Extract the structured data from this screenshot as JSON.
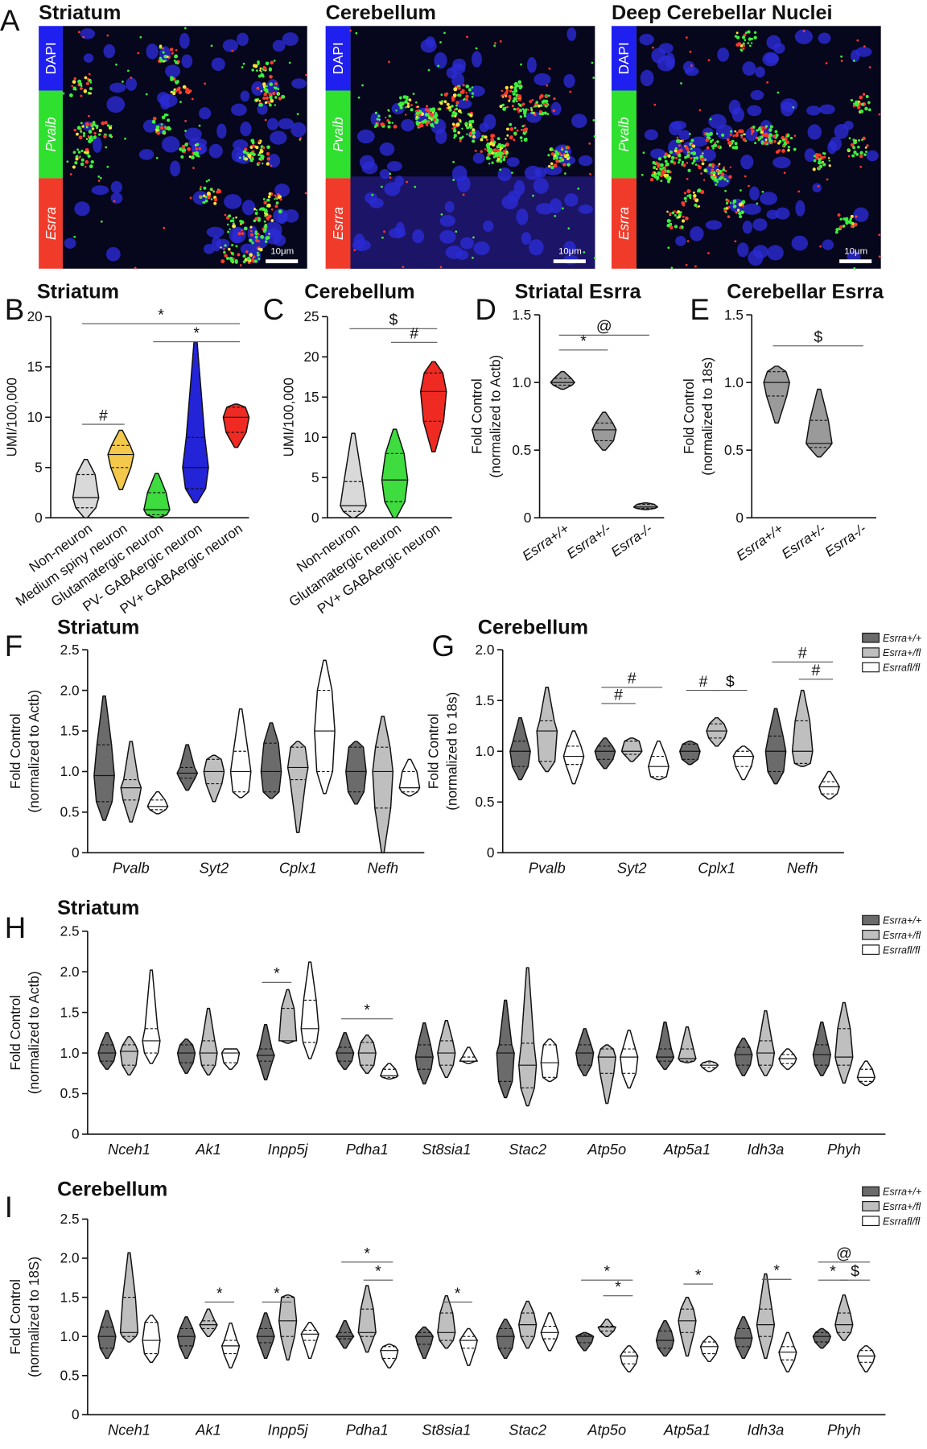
{
  "panel_a": {
    "label": "A",
    "images": [
      {
        "title": "Striatum",
        "channels": [
          "DAPI",
          "Pvalb",
          "Esrra"
        ],
        "scale_bar": "10μm"
      },
      {
        "title": "Cerebellum",
        "channels": [
          "DAPI",
          "Pvalb",
          "Esrra"
        ],
        "scale_bar": "10μm"
      },
      {
        "title": "Deep Cerebellar Nuclei",
        "channels": [
          "DAPI",
          "Pvalb",
          "Esrra"
        ],
        "scale_bar": "10μm"
      }
    ]
  },
  "chart_data": [
    {
      "type": "violin",
      "panel_label": "B",
      "title": "Striatum",
      "ylabel": [
        "UMI/100,000"
      ],
      "categories": [
        "Non-neuron",
        "Medium spiny neuron",
        "Glutamatergic neuron",
        "PV- GABAergic neuron",
        "PV+ GABAergic neuron"
      ],
      "values": [
        [
          0,
          1,
          2,
          4.3,
          5.8
        ],
        [
          2.8,
          5,
          6.3,
          7.2,
          8.7
        ],
        [
          0,
          0.3,
          0.8,
          2.5,
          4.4
        ],
        [
          1.5,
          2.9,
          5,
          8,
          17.5
        ],
        [
          7,
          8.5,
          10,
          11,
          11.3
        ]
      ],
      "colors": [
        "#d9d9d9",
        "#f4c84a",
        "#3fdc3f",
        "#2323d8",
        "#ee2a22"
      ],
      "ylim": [
        0,
        20
      ],
      "yticks": [
        0,
        5,
        10,
        15,
        20
      ],
      "annotations": [
        "*",
        "*",
        "#"
      ]
    },
    {
      "type": "violin",
      "panel_label": "C",
      "title": "Cerebellum",
      "ylabel": [
        "UMI/100,000"
      ],
      "categories": [
        "Non-neuron",
        "Glutamatergic neuron",
        "PV+ GABAergic neuron"
      ],
      "values": [
        [
          0,
          0.8,
          1.5,
          4.5,
          10.5
        ],
        [
          0,
          2,
          4.7,
          8,
          11
        ],
        [
          8.2,
          12,
          15.7,
          18,
          19.4
        ]
      ],
      "colors": [
        "#d9d9d9",
        "#3fdc3f",
        "#ee2a22"
      ],
      "ylim": [
        0,
        25
      ],
      "yticks": [
        0,
        5,
        10,
        15,
        20,
        25
      ],
      "annotations": [
        "$",
        "#"
      ]
    },
    {
      "type": "violin",
      "panel_label": "D",
      "title": "Striatal Esrra",
      "ylabel": [
        "Fold Control",
        "(normalized to Actb)"
      ],
      "categories": [
        "Esrra+/+",
        "Esrra+/-",
        "Esrra-/-"
      ],
      "values": [
        [
          0.95,
          0.98,
          1.0,
          1.03,
          1.08
        ],
        [
          0.5,
          0.57,
          0.65,
          0.7,
          0.78
        ],
        [
          0.06,
          0.07,
          0.08,
          0.1,
          0.11
        ]
      ],
      "colors": [
        "#9a9a9a",
        "#9a9a9a",
        "#9a9a9a"
      ],
      "ylim": [
        0,
        1.5
      ],
      "yticks": [
        0,
        0.5,
        {
          "value": 1,
          "label": "1.0"
        },
        1.5
      ],
      "annotations": [
        "@",
        "*"
      ]
    },
    {
      "type": "violin",
      "panel_label": "E",
      "title": "Cerebellar Esrra",
      "ylabel": [
        "Fold Control",
        "(normalized to 18s)"
      ],
      "categories": [
        "Esrra+/+",
        "Esrra+/-",
        "Esrra-/-"
      ],
      "values": [
        [
          0.7,
          0.9,
          1.0,
          1.08,
          1.12
        ],
        [
          0.45,
          0.52,
          0.55,
          0.72,
          0.95
        ],
        null
      ],
      "colors": [
        "#9a9a9a",
        "#9a9a9a",
        "#9a9a9a"
      ],
      "ylim": [
        0,
        1.5
      ],
      "yticks": [
        0,
        0.5,
        {
          "value": 1,
          "label": "1.0"
        },
        1.5
      ],
      "annotations": [
        "$"
      ]
    },
    {
      "type": "grouped_violin",
      "panel_label": "F",
      "title": "Striatum",
      "ylabel": [
        "Fold Control",
        "(normalized to Actb)"
      ],
      "categories": [
        "Pvalb",
        "Syt2",
        "Cplx1",
        "Nefh"
      ],
      "series": [
        {
          "color": "#6b6b6b",
          "values": [
            [
              0.4,
              0.63,
              0.95,
              1.33,
              1.93
            ],
            [
              0.77,
              0.92,
              0.98,
              1.05,
              1.33
            ],
            [
              0.67,
              0.75,
              1.0,
              1.35,
              1.6
            ],
            [
              0.6,
              0.75,
              1.0,
              1.3,
              1.37
            ]
          ]
        },
        {
          "color": "#bfbfbf",
          "values": [
            [
              0.38,
              0.65,
              0.8,
              0.9,
              1.37
            ],
            [
              0.63,
              0.85,
              1.0,
              1.15,
              1.2
            ],
            [
              0.25,
              0.9,
              1.05,
              1.3,
              1.37
            ],
            [
              0,
              0.55,
              1.0,
              1.3,
              1.68
            ]
          ]
        },
        {
          "color": "#ffffff",
          "values": [
            [
              0.48,
              0.53,
              0.57,
              0.65,
              0.75
            ],
            [
              0.68,
              0.75,
              1.0,
              1.25,
              1.77
            ],
            [
              0.73,
              1.0,
              1.5,
              2.0,
              2.37
            ],
            [
              0.7,
              0.75,
              0.8,
              1.0,
              1.15
            ]
          ]
        }
      ],
      "ylim": [
        0,
        2.5
      ],
      "yticks": [
        0,
        0.5,
        {
          "value": 1,
          "label": "1.0"
        },
        1.5,
        {
          "value": 2,
          "label": "2.0"
        },
        2.5
      ],
      "annotations": []
    },
    {
      "type": "grouped_violin",
      "panel_label": "G",
      "title": "Cerebellum",
      "ylabel": [
        "Fold Control",
        "(normalized to 18s)"
      ],
      "categories": [
        "Pvalb",
        "Syt2",
        "Cplx1",
        "Nefh"
      ],
      "series": [
        {
          "name": "Esrra+/+",
          "color": "#6b6b6b",
          "values": [
            [
              0.72,
              0.85,
              1.0,
              1.1,
              1.33
            ],
            [
              0.83,
              0.92,
              1.0,
              1.05,
              1.13
            ],
            [
              0.87,
              0.92,
              1.0,
              1.07,
              1.1
            ],
            [
              0.68,
              0.8,
              1.0,
              1.15,
              1.42
            ]
          ]
        },
        {
          "name": "Esrra+/fl",
          "color": "#bfbfbf",
          "values": [
            [
              0.8,
              0.9,
              1.2,
              1.3,
              1.63
            ],
            [
              0.9,
              0.97,
              1.0,
              1.1,
              1.13
            ],
            [
              1.05,
              1.13,
              1.2,
              1.27,
              1.33
            ],
            [
              0.85,
              0.88,
              1.0,
              1.3,
              1.6
            ]
          ]
        },
        {
          "name": "Esrrafl/fl",
          "color": "#ffffff",
          "values": [
            [
              0.68,
              0.87,
              0.95,
              1.05,
              1.2
            ],
            [
              0.72,
              0.75,
              0.85,
              0.95,
              1.1
            ],
            [
              0.72,
              0.85,
              0.95,
              1.0,
              1.05
            ],
            [
              0.53,
              0.58,
              0.65,
              0.7,
              0.8
            ]
          ]
        }
      ],
      "ylim": [
        0,
        2
      ],
      "yticks": [
        0,
        0.5,
        {
          "value": 1,
          "label": "1.0"
        },
        1.5,
        {
          "value": 2,
          "label": "2.0"
        }
      ],
      "annotations": [
        "#",
        "#",
        "#",
        "$",
        "#",
        "#"
      ],
      "legend": "right"
    },
    {
      "type": "grouped_violin",
      "panel_label": "H",
      "title": "Striatum",
      "ylabel": [
        "Fold Control",
        "(normalized to Actb)"
      ],
      "categories": [
        "Nceh1",
        "Ak1",
        "Inpp5j",
        "Pdha1",
        "St8sia1",
        "Stac2",
        "Atp5o",
        "Atp5a1",
        "Idh3a",
        "Phyh"
      ],
      "series": [
        {
          "name": "Esrra+/+",
          "color": "#6b6b6b",
          "values": [
            [
              0.8,
              0.9,
              1.0,
              1.1,
              1.25
            ],
            [
              0.75,
              0.88,
              1.0,
              1.1,
              1.17
            ],
            [
              0.67,
              0.9,
              0.97,
              1.05,
              1.35
            ],
            [
              0.8,
              0.9,
              1.0,
              1.07,
              1.25
            ],
            [
              0.62,
              0.8,
              0.95,
              1.1,
              1.37
            ],
            [
              0.45,
              0.65,
              1.0,
              1.1,
              1.65
            ],
            [
              0.72,
              0.85,
              1.0,
              1.1,
              1.3
            ],
            [
              0.8,
              0.9,
              0.95,
              1.05,
              1.38
            ],
            [
              0.72,
              0.85,
              0.98,
              1.07,
              1.18
            ],
            [
              0.72,
              0.85,
              0.98,
              1.1,
              1.38
            ]
          ]
        },
        {
          "name": "Esrra+/fl",
          "color": "#bfbfbf",
          "values": [
            [
              0.73,
              0.85,
              1.02,
              1.1,
              1.2
            ],
            [
              0.73,
              0.85,
              1.0,
              1.15,
              1.55
            ],
            [
              1.12,
              1.15,
              1.15,
              1.55,
              1.78
            ],
            [
              0.75,
              0.85,
              1.0,
              1.13,
              1.22
            ],
            [
              0.7,
              0.85,
              1.0,
              1.15,
              1.4
            ],
            [
              0.35,
              0.57,
              0.85,
              1.12,
              2.05
            ],
            [
              0.38,
              0.75,
              0.95,
              1.05,
              1.1
            ],
            [
              0.88,
              0.9,
              0.93,
              1.05,
              1.32
            ],
            [
              0.72,
              0.85,
              1.0,
              1.15,
              1.52
            ],
            [
              0.63,
              0.85,
              0.95,
              1.3,
              1.62
            ]
          ]
        },
        {
          "name": "Esrrafl/fl",
          "color": "#ffffff",
          "values": [
            [
              0.87,
              1.0,
              1.15,
              1.3,
              2.02
            ],
            [
              0.8,
              0.88,
              1.0,
              1.05,
              1.05
            ],
            [
              0.93,
              1.13,
              1.3,
              1.65,
              2.12
            ],
            [
              0.68,
              0.7,
              0.72,
              0.8,
              0.87
            ],
            [
              0.87,
              0.9,
              0.9,
              0.95,
              1.07
            ],
            [
              0.65,
              0.7,
              0.88,
              1.1,
              1.17
            ],
            [
              0.57,
              0.75,
              0.95,
              1.05,
              1.28
            ],
            [
              0.77,
              0.82,
              0.85,
              0.88,
              0.9
            ],
            [
              0.8,
              0.87,
              0.93,
              0.98,
              1.05
            ],
            [
              0.6,
              0.65,
              0.7,
              0.8,
              0.9
            ]
          ]
        }
      ],
      "ylim": [
        0,
        2.5
      ],
      "yticks": [
        0,
        0.5,
        {
          "value": 1,
          "label": "1.0"
        },
        1.5,
        {
          "value": 2,
          "label": "2.0"
        },
        2.5
      ],
      "annotations": [
        "*",
        "*"
      ],
      "legend": "right"
    },
    {
      "type": "grouped_violin",
      "panel_label": "I",
      "title": "Cerebellum",
      "ylabel": [
        "Fold Control",
        "(normalized to 18S)"
      ],
      "categories": [
        "Nceh1",
        "Ak1",
        "Inpp5j",
        "Pdha1",
        "St8sia1",
        "Stac2",
        "Atp5o",
        "Atp5a1",
        "Idh3a",
        "Phyh"
      ],
      "series": [
        {
          "name": "Esrra+/+",
          "color": "#6b6b6b",
          "values": [
            [
              0.72,
              0.85,
              1.0,
              1.12,
              1.33
            ],
            [
              0.72,
              0.88,
              1.0,
              1.1,
              1.25
            ],
            [
              0.72,
              0.92,
              1.0,
              1.1,
              1.3
            ],
            [
              0.85,
              0.97,
              1.0,
              1.05,
              1.2
            ],
            [
              0.72,
              0.9,
              1.0,
              1.05,
              1.12
            ],
            [
              0.72,
              0.85,
              1.0,
              1.1,
              1.22
            ],
            [
              0.82,
              0.92,
              1.0,
              1.02,
              1.05
            ],
            [
              0.75,
              0.85,
              0.95,
              1.07,
              1.2
            ],
            [
              0.72,
              0.87,
              0.98,
              1.1,
              1.25
            ],
            [
              0.85,
              0.93,
              1.0,
              1.05,
              1.1
            ]
          ]
        },
        {
          "name": "Esrra+/fl",
          "color": "#bfbfbf",
          "values": [
            [
              0.93,
              1.0,
              1.05,
              1.5,
              2.07
            ],
            [
              1.0,
              1.1,
              1.15,
              1.2,
              1.35
            ],
            [
              0.7,
              1.0,
              1.2,
              1.5,
              1.53
            ],
            [
              0.8,
              1.0,
              1.05,
              1.35,
              1.65
            ],
            [
              0.85,
              0.95,
              1.05,
              1.3,
              1.52
            ],
            [
              0.85,
              1.0,
              1.15,
              1.3,
              1.45
            ],
            [
              1.0,
              1.07,
              1.12,
              1.13,
              1.22
            ],
            [
              0.75,
              1.05,
              1.2,
              1.35,
              1.5
            ],
            [
              0.72,
              1.0,
              1.15,
              1.35,
              1.8
            ],
            [
              0.95,
              1.05,
              1.15,
              1.3,
              1.53
            ]
          ]
        },
        {
          "name": "Esrrafl/fl",
          "color": "#ffffff",
          "values": [
            [
              0.67,
              0.78,
              0.95,
              1.18,
              1.27
            ],
            [
              0.6,
              0.78,
              0.88,
              0.95,
              1.17
            ],
            [
              0.72,
              0.95,
              1.03,
              1.08,
              1.18
            ],
            [
              0.6,
              0.72,
              0.82,
              0.87,
              0.9
            ],
            [
              0.63,
              0.85,
              0.95,
              1.0,
              1.1
            ],
            [
              0.82,
              0.97,
              1.05,
              1.13,
              1.3
            ],
            [
              0.55,
              0.65,
              0.75,
              0.8,
              0.88
            ],
            [
              0.68,
              0.78,
              0.87,
              0.93,
              1.0
            ],
            [
              0.55,
              0.7,
              0.8,
              0.87,
              1.05
            ],
            [
              0.55,
              0.67,
              0.75,
              0.82,
              0.88
            ]
          ]
        }
      ],
      "ylim": [
        0,
        2.5
      ],
      "yticks": [
        0,
        0.5,
        {
          "value": 1,
          "label": "1.0"
        },
        1.5,
        {
          "value": 2,
          "label": "2.0"
        },
        2.5
      ],
      "annotations": [
        "*",
        "*",
        "*",
        "*",
        "*",
        "*",
        "*",
        "*",
        "*",
        "@",
        "*",
        "$"
      ],
      "legend": "right"
    }
  ]
}
